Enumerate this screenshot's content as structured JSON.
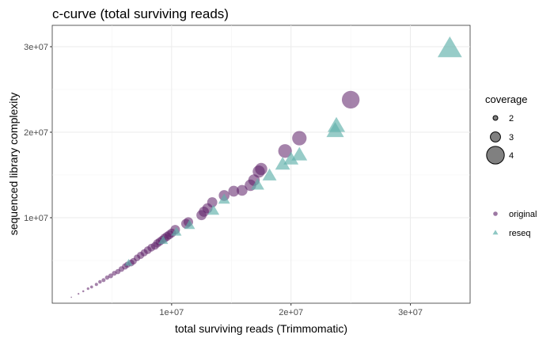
{
  "chart_data": {
    "type": "scatter",
    "title": "c-curve (total surviving reads)",
    "xlabel": "total surviving reads (Trimmomatic)",
    "ylabel": "sequenced library complexity",
    "xlim": [
      0,
      35000000
    ],
    "ylim": [
      0,
      32500000
    ],
    "x_ticks": [
      {
        "value": 10000000,
        "label": "1e+07"
      },
      {
        "value": 20000000,
        "label": "2e+07"
      },
      {
        "value": 30000000,
        "label": "3e+07"
      }
    ],
    "y_ticks": [
      {
        "value": 10000000,
        "label": "1e+07"
      },
      {
        "value": 20000000,
        "label": "2e+07"
      },
      {
        "value": 30000000,
        "label": "3e+07"
      }
    ],
    "grid": true,
    "legend_position": "right",
    "size_legend": {
      "title": "coverage",
      "entries": [
        {
          "label": "2",
          "value": 2
        },
        {
          "label": "3",
          "value": 3
        },
        {
          "label": "4",
          "value": 4
        }
      ]
    },
    "series": [
      {
        "name": "original",
        "color": "#5b1e66",
        "shape": "circle",
        "points": [
          [
            1600000,
            700000,
            0.9
          ],
          [
            2200000,
            1100000,
            1.1
          ],
          [
            2600000,
            1400000,
            1.2
          ],
          [
            3000000,
            1700000,
            1.4
          ],
          [
            3300000,
            1900000,
            1.5
          ],
          [
            3700000,
            2200000,
            1.6
          ],
          [
            4000000,
            2500000,
            1.7
          ],
          [
            4300000,
            2700000,
            1.8
          ],
          [
            4600000,
            3000000,
            1.9
          ],
          [
            4900000,
            3200000,
            2.0
          ],
          [
            5200000,
            3500000,
            2.0
          ],
          [
            5500000,
            3700000,
            2.1
          ],
          [
            5800000,
            4000000,
            2.2
          ],
          [
            6100000,
            4300000,
            2.3
          ],
          [
            6300000,
            4500000,
            2.3
          ],
          [
            6600000,
            4700000,
            2.4
          ],
          [
            6800000,
            4900000,
            2.4
          ],
          [
            7100000,
            5300000,
            2.4
          ],
          [
            7400000,
            5600000,
            2.5
          ],
          [
            7700000,
            5900000,
            2.5
          ],
          [
            8000000,
            6200000,
            2.6
          ],
          [
            8300000,
            6500000,
            2.6
          ],
          [
            8600000,
            6700000,
            2.6
          ],
          [
            8800000,
            7000000,
            2.7
          ],
          [
            9000000,
            7200000,
            2.7
          ],
          [
            9200000,
            7400000,
            2.7
          ],
          [
            9400000,
            7600000,
            2.8
          ],
          [
            9600000,
            7800000,
            2.8
          ],
          [
            9800000,
            8000000,
            2.8
          ],
          [
            10000000,
            8200000,
            2.8
          ],
          [
            10300000,
            8600000,
            2.9
          ],
          [
            11200000,
            9300000,
            2.9
          ],
          [
            11400000,
            9500000,
            2.9
          ],
          [
            12500000,
            10300000,
            3.0
          ],
          [
            12700000,
            10700000,
            3.0
          ],
          [
            13000000,
            11100000,
            3.0
          ],
          [
            13400000,
            11800000,
            3.0
          ],
          [
            14400000,
            12600000,
            3.1
          ],
          [
            15200000,
            13100000,
            3.1
          ],
          [
            15900000,
            13200000,
            3.1
          ],
          [
            16600000,
            13800000,
            3.2
          ],
          [
            16900000,
            14400000,
            3.2
          ],
          [
            17300000,
            15400000,
            3.3
          ],
          [
            17500000,
            15700000,
            3.3
          ],
          [
            19500000,
            17800000,
            3.5
          ],
          [
            20700000,
            19300000,
            3.6
          ],
          [
            25000000,
            23800000,
            4.0
          ]
        ]
      },
      {
        "name": "reseq",
        "color": "#5fb0ab",
        "shape": "triangle",
        "points": [
          [
            6400000,
            4700000,
            2.5
          ],
          [
            9300000,
            7300000,
            2.8
          ],
          [
            10400000,
            8300000,
            2.9
          ],
          [
            11500000,
            9100000,
            3.0
          ],
          [
            13500000,
            10800000,
            3.1
          ],
          [
            14400000,
            12100000,
            3.1
          ],
          [
            17200000,
            13800000,
            3.3
          ],
          [
            18200000,
            14900000,
            3.4
          ],
          [
            19300000,
            16200000,
            3.5
          ],
          [
            20000000,
            16800000,
            3.5
          ],
          [
            20700000,
            17300000,
            3.6
          ],
          [
            23700000,
            20100000,
            3.8
          ],
          [
            23800000,
            20700000,
            3.8
          ],
          [
            33300000,
            29700000,
            4.5
          ]
        ]
      }
    ]
  }
}
